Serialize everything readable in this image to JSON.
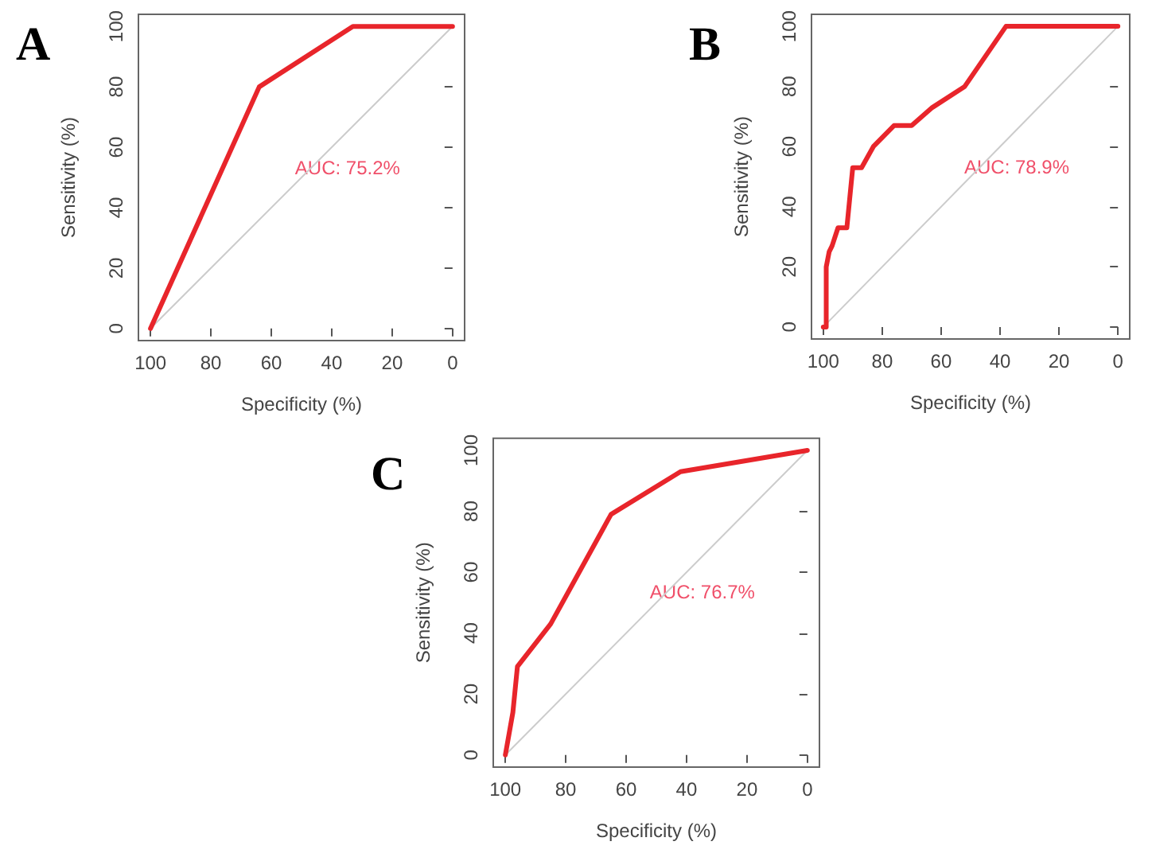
{
  "chart_data": [
    {
      "type": "line",
      "title": "A",
      "xlabel": "Specificity (%)",
      "ylabel": "Sensitivity (%)",
      "xlim": [
        104,
        -4
      ],
      "ylim": [
        -4,
        104
      ],
      "xticks": [
        100,
        80,
        60,
        40,
        20,
        0
      ],
      "yticks": [
        0,
        20,
        40,
        60,
        80,
        100
      ],
      "grid": false,
      "marker": "none",
      "annotations": [
        "AUC: 75.2%"
      ],
      "series": [
        {
          "color": "#e8252b",
          "x": [
            100,
            64,
            33,
            0
          ],
          "values": [
            0,
            80,
            100,
            100
          ]
        },
        {
          "color": "#cccccc",
          "x": [
            100,
            0
          ],
          "values": [
            0,
            100
          ]
        }
      ]
    },
    {
      "type": "line",
      "title": "B",
      "xlabel": "Specificity (%)",
      "ylabel": "Sensitivity (%)",
      "xlim": [
        104,
        -4
      ],
      "ylim": [
        -4,
        104
      ],
      "xticks": [
        100,
        80,
        60,
        40,
        20,
        0
      ],
      "yticks": [
        0,
        20,
        40,
        60,
        80,
        100
      ],
      "grid": false,
      "marker": "none",
      "annotations": [
        "AUC: 78.9%"
      ],
      "series": [
        {
          "color": "#e8252b",
          "x": [
            100,
            99,
            99,
            98,
            97,
            96,
            95,
            92,
            90,
            87,
            83,
            76,
            70,
            63,
            52,
            38,
            0
          ],
          "values": [
            0,
            0,
            20,
            25,
            27,
            30,
            33,
            33,
            53,
            53,
            60,
            67,
            67,
            73,
            80,
            100,
            100
          ]
        },
        {
          "color": "#cccccc",
          "x": [
            100,
            0
          ],
          "values": [
            0,
            100
          ]
        }
      ]
    },
    {
      "type": "line",
      "title": "C",
      "xlabel": "Specificity (%)",
      "ylabel": "Sensitivity (%)",
      "xlim": [
        104,
        -4
      ],
      "ylim": [
        -4,
        104
      ],
      "xticks": [
        100,
        80,
        60,
        40,
        20,
        0
      ],
      "yticks": [
        0,
        20,
        40,
        60,
        80,
        100
      ],
      "grid": false,
      "marker": "none",
      "annotations": [
        "AUC: 76.7%"
      ],
      "series": [
        {
          "color": "#e8252b",
          "x": [
            100,
            97.5,
            96,
            85,
            65,
            42,
            0
          ],
          "values": [
            0,
            14,
            29,
            43,
            79,
            93,
            100
          ]
        },
        {
          "color": "#cccccc",
          "x": [
            100,
            0
          ],
          "values": [
            0,
            100
          ]
        }
      ]
    }
  ]
}
